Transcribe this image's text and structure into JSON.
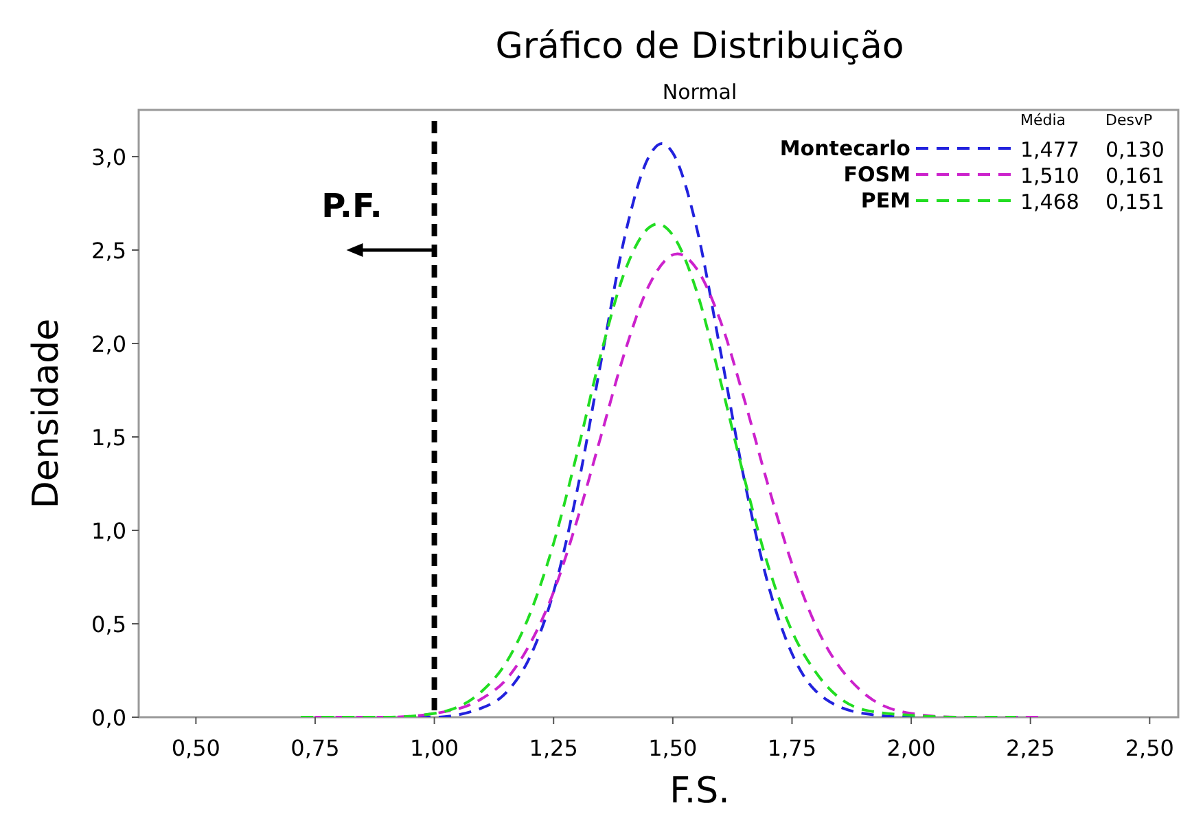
{
  "chart_data": {
    "type": "line",
    "title": "Gráfico de Distribuição",
    "subtitle": "Normal",
    "xlabel": "F.S.",
    "ylabel": "Densidade",
    "xlim": [
      0.38,
      2.56
    ],
    "ylim": [
      0,
      3.25
    ],
    "xticks": [
      {
        "value": 0.5,
        "label": "0,50"
      },
      {
        "value": 0.75,
        "label": "0,75"
      },
      {
        "value": 1.0,
        "label": "1,00"
      },
      {
        "value": 1.25,
        "label": "1,25"
      },
      {
        "value": 1.5,
        "label": "1,50"
      },
      {
        "value": 1.75,
        "label": "1,75"
      },
      {
        "value": 2.0,
        "label": "2,00"
      },
      {
        "value": 2.25,
        "label": "2,25"
      },
      {
        "value": 2.5,
        "label": "2,50"
      }
    ],
    "yticks": [
      {
        "value": 0,
        "label": "0,0"
      },
      {
        "value": 0.5,
        "label": "0,5"
      },
      {
        "value": 1.0,
        "label": "1,0"
      },
      {
        "value": 1.5,
        "label": "1,5"
      },
      {
        "value": 2.0,
        "label": "2,0"
      },
      {
        "value": 2.5,
        "label": "2,5"
      },
      {
        "value": 3.0,
        "label": "3,0"
      }
    ],
    "grid": false,
    "legend": "top right",
    "marker": "none",
    "line_style": "dashed",
    "series": [
      {
        "name": "Montecarlo",
        "color": "#2222dd",
        "x": [
          0.75,
          0.9,
          1.0,
          1.1,
          1.15,
          1.2,
          1.25,
          1.3,
          1.35,
          1.4,
          1.45,
          1.477,
          1.5,
          1.55,
          1.6,
          1.65,
          1.7,
          1.75,
          1.8,
          1.9,
          2.0,
          2.1,
          2.25
        ],
        "values": [
          0,
          0,
          0.0,
          0.05,
          0.13,
          0.32,
          0.67,
          1.22,
          1.91,
          2.58,
          3.0,
          3.07,
          3.02,
          2.62,
          1.96,
          1.27,
          0.71,
          0.34,
          0.14,
          0.02,
          0,
          0,
          0
        ]
      },
      {
        "name": "FOSM",
        "color": "#cc22cc",
        "x": [
          0.75,
          0.9,
          1.0,
          1.1,
          1.15,
          1.2,
          1.25,
          1.3,
          1.35,
          1.4,
          1.45,
          1.51,
          1.55,
          1.6,
          1.65,
          1.7,
          1.75,
          1.8,
          1.9,
          2.0,
          2.1,
          2.28
        ],
        "values": [
          0,
          0,
          0.02,
          0.1,
          0.2,
          0.39,
          0.67,
          1.06,
          1.51,
          1.96,
          2.31,
          2.48,
          2.4,
          2.12,
          1.7,
          1.24,
          0.82,
          0.49,
          0.13,
          0.02,
          0,
          0
        ]
      },
      {
        "name": "PEM",
        "color": "#22dd22",
        "x": [
          0.72,
          0.9,
          1.0,
          1.1,
          1.15,
          1.2,
          1.25,
          1.3,
          1.35,
          1.4,
          1.45,
          1.468,
          1.5,
          1.55,
          1.6,
          1.65,
          1.7,
          1.75,
          1.8,
          1.9,
          2.0,
          2.1,
          2.22
        ],
        "values": [
          0,
          0,
          0.02,
          0.14,
          0.29,
          0.55,
          0.93,
          1.42,
          1.95,
          2.39,
          2.62,
          2.64,
          2.58,
          2.28,
          1.8,
          1.28,
          0.81,
          0.46,
          0.24,
          0.04,
          0.01,
          0,
          0
        ]
      }
    ],
    "ref_lines": [
      {
        "axis": "x",
        "value": 1.0,
        "label": "P.F.",
        "color": "#000000",
        "line_style": "dashed"
      }
    ],
    "annotations": [
      "Média",
      "DesvP",
      "1,477",
      "0,130",
      "1,510",
      "0,161",
      "1,468",
      "0,151"
    ]
  }
}
